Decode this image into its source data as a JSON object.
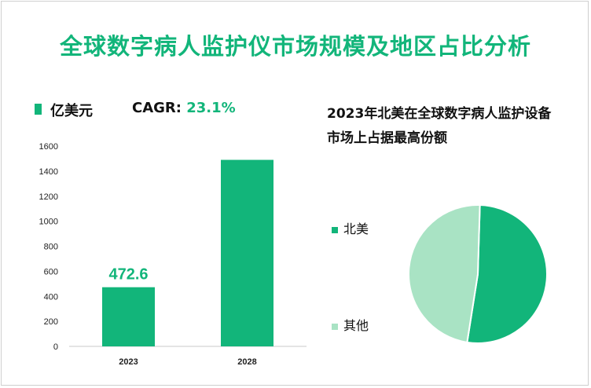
{
  "title": "全球数字病人监护仪市场规模及地区占比分析",
  "bar_legend": {
    "label": "亿美元",
    "color": "#12b57a"
  },
  "cagr": {
    "label": "CAGR: ",
    "value": "23.1%"
  },
  "pie_title": "2023年北美在全球数字病人监护设备市场上占据最高份额",
  "chart_data": [
    {
      "type": "bar",
      "categories": [
        "2023",
        "2028"
      ],
      "series": [
        {
          "name": "亿美元",
          "values": [
            472.6,
            1490
          ],
          "color": "#12b57a"
        }
      ],
      "data_labels": [
        "472.6",
        ""
      ],
      "ylim": [
        0,
        1600
      ],
      "yticks": [
        0,
        200,
        400,
        600,
        800,
        1000,
        1200,
        1400,
        1600
      ],
      "grid": false
    },
    {
      "type": "pie",
      "labels": [
        "北美",
        "其他"
      ],
      "values": [
        52,
        48
      ],
      "colors": [
        "#12b57a",
        "#a9e3c4"
      ],
      "legend": "left"
    }
  ]
}
